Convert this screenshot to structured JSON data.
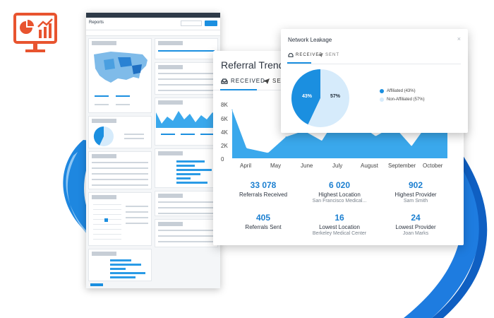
{
  "colors": {
    "accent": "#1b8fe0",
    "area": "#3aa8ec",
    "pie_light": "#d6ebfb",
    "logo": "#e8542f"
  },
  "mini_dashboard": {
    "title": "Reports",
    "icon": "dashboard-screenshot"
  },
  "trends": {
    "title": "Referral Trends",
    "tabs": [
      {
        "label": "RECEIVED",
        "icon": "inbox-icon"
      },
      {
        "label": "SENT",
        "icon": "paper-plane-icon"
      }
    ],
    "stats": [
      {
        "value": "33 078",
        "label": "Referrals Received",
        "sub": ""
      },
      {
        "value": "6 020",
        "label": "Highest Location",
        "sub": "San Francisco Medical..."
      },
      {
        "value": "902",
        "label": "Highest Provider",
        "sub": "Sam Smith"
      },
      {
        "value": "405",
        "label": "Referrals Sent",
        "sub": ""
      },
      {
        "value": "16",
        "label": "Lowest Location",
        "sub": "Berkeley Medical Center"
      },
      {
        "value": "24",
        "label": "Lowest Provider",
        "sub": "Joan Marks"
      }
    ]
  },
  "chart_data": {
    "type": "area",
    "categories": [
      "April",
      "May",
      "June",
      "July",
      "August",
      "September",
      "October"
    ],
    "yticks": [
      "8K",
      "6K",
      "4K",
      "2K",
      "0"
    ],
    "ylim": [
      0,
      8000
    ],
    "x": [
      0,
      0.4,
      1,
      1.5,
      2,
      2.5,
      3,
      3.5,
      4,
      4.5,
      5,
      5.5,
      6
    ],
    "values": [
      7200,
      1500,
      800,
      3200,
      4100,
      2600,
      6800,
      5200,
      3300,
      4800,
      1800,
      5500,
      6300
    ]
  },
  "leakage": {
    "title": "Network Leakage",
    "tabs": [
      {
        "label": "RECEIVED",
        "icon": "inbox-icon"
      },
      {
        "label": "SENT",
        "icon": "paper-plane-icon"
      }
    ],
    "slices": [
      {
        "name": "Affiliated (43%)",
        "pct_label": "43%",
        "value": 43,
        "color": "#1b8fe0"
      },
      {
        "name": "Non-Affiliated (57%)",
        "pct_label": "57%",
        "value": 57,
        "color": "#d6ebfb"
      }
    ],
    "close": "×"
  }
}
